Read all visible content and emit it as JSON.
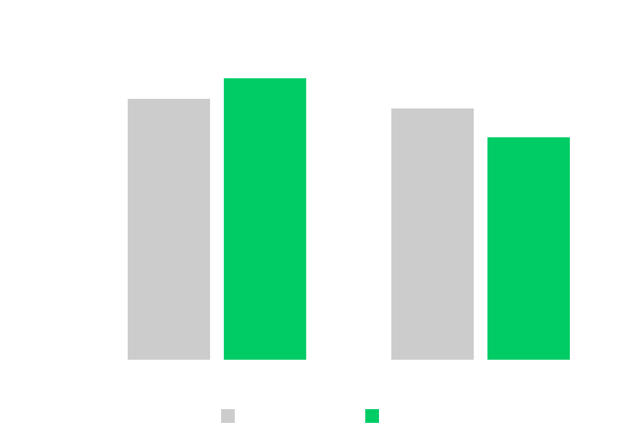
{
  "chart_data": {
    "type": "bar",
    "title": "",
    "xlabel": "",
    "ylabel": "",
    "categories": [
      "",
      ""
    ],
    "ylim": [
      0,
      100
    ],
    "grid": false,
    "legend_position": "bottom",
    "series": [
      {
        "name": "",
        "color": "#cccccc",
        "values": [
          76,
          73.2
        ]
      },
      {
        "name": "",
        "color": "#00cc66",
        "values": [
          82,
          64.8
        ]
      }
    ]
  }
}
